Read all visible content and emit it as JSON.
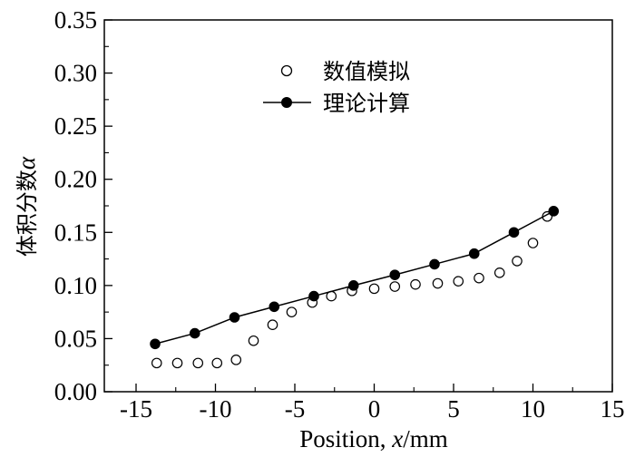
{
  "chart_data": {
    "type": "scatter",
    "xlabel_main": "Position, ",
    "xlabel_var": "x",
    "xlabel_unit": "/mm",
    "ylabel_main": "体积分数",
    "ylabel_var": "α",
    "xlim": [
      -17,
      15
    ],
    "ylim": [
      0,
      0.35
    ],
    "x_ticks": [
      -15,
      -10,
      -5,
      0,
      5,
      10,
      15
    ],
    "x_tick_labels": [
      "-15",
      "-10",
      "-5",
      "0",
      "5",
      "10",
      "15"
    ],
    "y_ticks": [
      0,
      0.05,
      0.1,
      0.15,
      0.2,
      0.25,
      0.3,
      0.35
    ],
    "y_tick_labels": [
      "0.00",
      "0.05",
      "0.10",
      "0.15",
      "0.20",
      "0.25",
      "0.30",
      "0.35"
    ],
    "legend_position": "top-center",
    "series": [
      {
        "name": "数值模拟",
        "marker": "open-circle",
        "line": false,
        "color": "#000000",
        "x": [
          -13.7,
          -12.4,
          -11.1,
          -9.9,
          -8.7,
          -7.6,
          -6.4,
          -5.2,
          -3.9,
          -2.7,
          -1.4,
          0.0,
          1.3,
          2.6,
          4.0,
          5.3,
          6.6,
          7.9,
          9.0,
          10.0,
          10.9
        ],
        "y": [
          0.027,
          0.027,
          0.027,
          0.027,
          0.03,
          0.048,
          0.063,
          0.075,
          0.084,
          0.09,
          0.095,
          0.097,
          0.099,
          0.101,
          0.102,
          0.104,
          0.107,
          0.112,
          0.123,
          0.14,
          0.165
        ]
      },
      {
        "name": "理论计算",
        "marker": "filled-circle",
        "line": true,
        "color": "#000000",
        "x": [
          -13.8,
          -11.3,
          -8.8,
          -6.3,
          -3.8,
          -1.3,
          1.3,
          3.8,
          6.3,
          8.8,
          11.3
        ],
        "y": [
          0.045,
          0.055,
          0.07,
          0.08,
          0.09,
          0.1,
          0.11,
          0.12,
          0.13,
          0.15,
          0.17
        ]
      }
    ]
  }
}
